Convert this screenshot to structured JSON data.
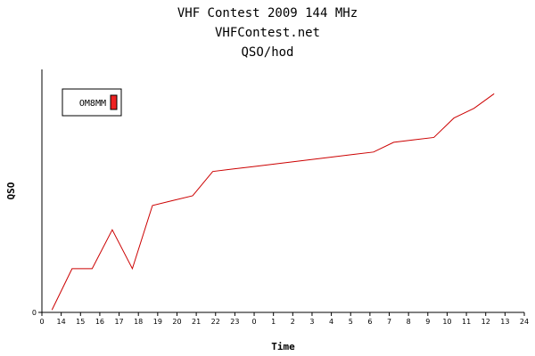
{
  "chart_data": {
    "type": "line",
    "title": "VHF Contest 2009 144 MHz",
    "subtitle": "VHFContest.net",
    "subtitle2": "QSO/hod",
    "xlabel": "Time",
    "ylabel": "QSO",
    "x_tick_labels": [
      "0",
      "14",
      "15",
      "16",
      "17",
      "18",
      "19",
      "20",
      "21",
      "22",
      "23",
      "0",
      "1",
      "2",
      "3",
      "4",
      "5",
      "6",
      "7",
      "8",
      "9",
      "10",
      "11",
      "12",
      "13",
      "24"
    ],
    "y_tick_labels": [
      "0"
    ],
    "grid": false,
    "legend_position": "top-left",
    "colors": {
      "series": "#cc0000",
      "legend_swatch": "#ee2222",
      "axis": "#000000"
    },
    "xlim": [
      0,
      24
    ],
    "ylim": [
      0,
      100
    ],
    "series": [
      {
        "name": "OM8MM",
        "x": [
          0.5,
          1.5,
          2.5,
          3.5,
          4.5,
          5.5,
          6.5,
          7.5,
          8.5,
          9.5,
          10.5,
          11.5,
          12.5,
          13.5,
          14.5,
          15.5,
          16.5,
          17.5,
          18.5,
          19.5,
          20.5,
          21.5,
          22.5
        ],
        "values": [
          1,
          18,
          18,
          34,
          18,
          44,
          46,
          48,
          58,
          59,
          60,
          61,
          62,
          63,
          64,
          65,
          66,
          70,
          71,
          72,
          80,
          84,
          90
        ]
      }
    ]
  }
}
